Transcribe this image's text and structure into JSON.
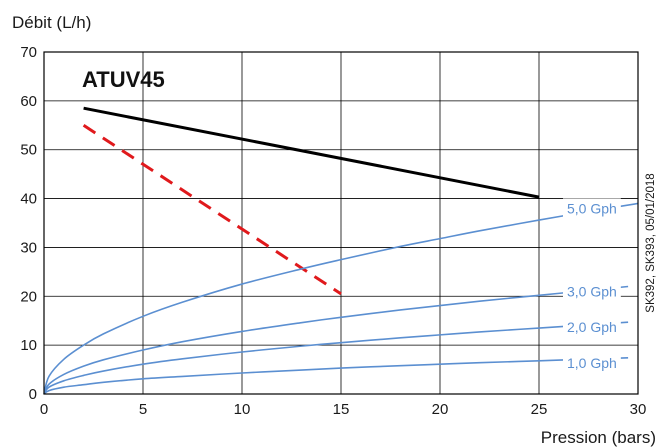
{
  "chart_data": {
    "type": "line",
    "title": "ATUV45",
    "ylabel": "Débit (L/h)",
    "xlabel": "Pression (bars)",
    "xlim": [
      0,
      30
    ],
    "ylim": [
      0,
      70
    ],
    "x_ticks": [
      0,
      5,
      10,
      15,
      20,
      25,
      30
    ],
    "y_ticks": [
      0,
      10,
      20,
      30,
      40,
      50,
      60,
      70
    ],
    "grid": true,
    "side_note": "SK392, SK393, 05/01/2018",
    "series": [
      {
        "style": "solid",
        "color": "#000000",
        "x": [
          2,
          25
        ],
        "y": [
          58.5,
          40.3
        ]
      },
      {
        "style": "dashed",
        "color": "#e0191c",
        "x": [
          2,
          15
        ],
        "y": [
          55,
          20.5
        ]
      },
      {
        "name": "5,0 Gph",
        "style": "curve",
        "color": "#5b8fd1",
        "x": [
          0,
          0.25,
          1,
          2,
          3,
          5,
          7,
          10,
          13,
          15,
          18,
          20,
          22,
          25,
          28,
          30
        ],
        "y": [
          0,
          3.6,
          7.1,
          10,
          12.3,
          15.9,
          18.8,
          22.5,
          25.6,
          27.5,
          30.2,
          31.8,
          33.4,
          35.6,
          37.7,
          39
        ]
      },
      {
        "name": "3,0 Gph",
        "style": "curve",
        "color": "#5b8fd1",
        "x": [
          0,
          0.25,
          1,
          2,
          3,
          5,
          7,
          10,
          13,
          15,
          18,
          20,
          22,
          25,
          28,
          29.5
        ],
        "y": [
          0,
          2,
          4,
          5.7,
          7,
          9,
          10.7,
          12.8,
          14.6,
          15.7,
          17.2,
          18.1,
          19,
          20.2,
          21.4,
          22
        ]
      },
      {
        "name": "2,0 Gph",
        "style": "curve",
        "color": "#5b8fd1",
        "x": [
          0,
          0.25,
          1,
          2,
          3,
          5,
          7,
          10,
          13,
          15,
          18,
          20,
          22,
          25,
          28,
          29.5
        ],
        "y": [
          0,
          1.4,
          2.7,
          3.8,
          4.7,
          6.1,
          7.2,
          8.6,
          9.8,
          10.5,
          11.5,
          12.1,
          12.7,
          13.5,
          14.3,
          14.7
        ]
      },
      {
        "name": "1,0 Gph",
        "style": "curve",
        "color": "#5b8fd1",
        "x": [
          0,
          0.25,
          1,
          2,
          3,
          5,
          7,
          10,
          13,
          15,
          18,
          20,
          22,
          25,
          28,
          29.5
        ],
        "y": [
          0,
          0.7,
          1.4,
          1.9,
          2.4,
          3.1,
          3.6,
          4.3,
          4.9,
          5.3,
          5.8,
          6.1,
          6.4,
          6.8,
          7.2,
          7.4
        ]
      }
    ]
  }
}
